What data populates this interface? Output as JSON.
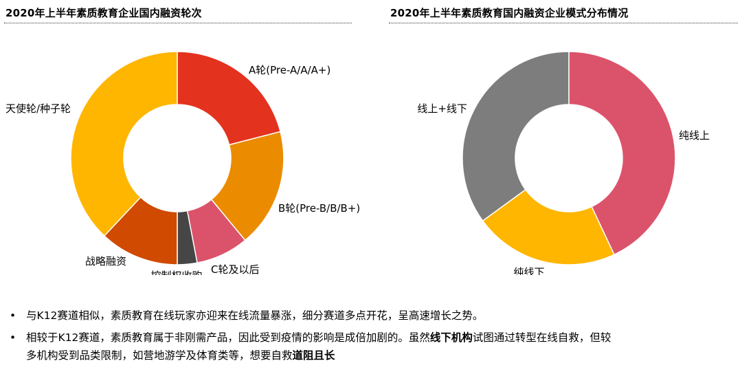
{
  "chart_data": [
    {
      "type": "pie",
      "title": "2020年上半年素质教育企业国内融资轮次",
      "slices": [
        {
          "label": "A轮(Pre-A/A/A+)",
          "value": 21,
          "color": "#E3321E"
        },
        {
          "label": "B轮(Pre-B/B/B+)",
          "value": 18,
          "color": "#EB8C00"
        },
        {
          "label": "C轮及以后",
          "value": 8,
          "color": "#DB536A"
        },
        {
          "label": "控制权收购",
          "value": 3,
          "color": "#464646"
        },
        {
          "label": "战略融资",
          "value": 12,
          "color": "#D04A02"
        },
        {
          "label": "天使轮/种子轮",
          "value": 38,
          "color": "#FFB600"
        }
      ]
    },
    {
      "type": "pie",
      "title": "2020年上半年素质教育国内融资企业模式分布情况",
      "slices": [
        {
          "label": "纯线上",
          "value": 43,
          "color": "#DB536A"
        },
        {
          "label": "纯线下",
          "value": 22,
          "color": "#FFB600"
        },
        {
          "label": "线上+线下",
          "value": 35,
          "color": "#7D7D7D"
        }
      ]
    }
  ],
  "bullets": {
    "b1": "与K12赛道相似，素质教育在线玩家亦迎来在线流量暴涨，细分赛道多点开花，呈高速增长之势。",
    "b2_a": "相较于K12赛道，素质教育属于非刚需产品，因此受到疫情的影响是成倍加剧的。虽然",
    "b2_b": "线下机构",
    "b2_c": "试图通过转型在线自救，但较",
    "b2_d": "多机构受到品类限制，如营地游学及体育类等，想要自救",
    "b2_e": "道阻且长",
    "marker": "•"
  }
}
